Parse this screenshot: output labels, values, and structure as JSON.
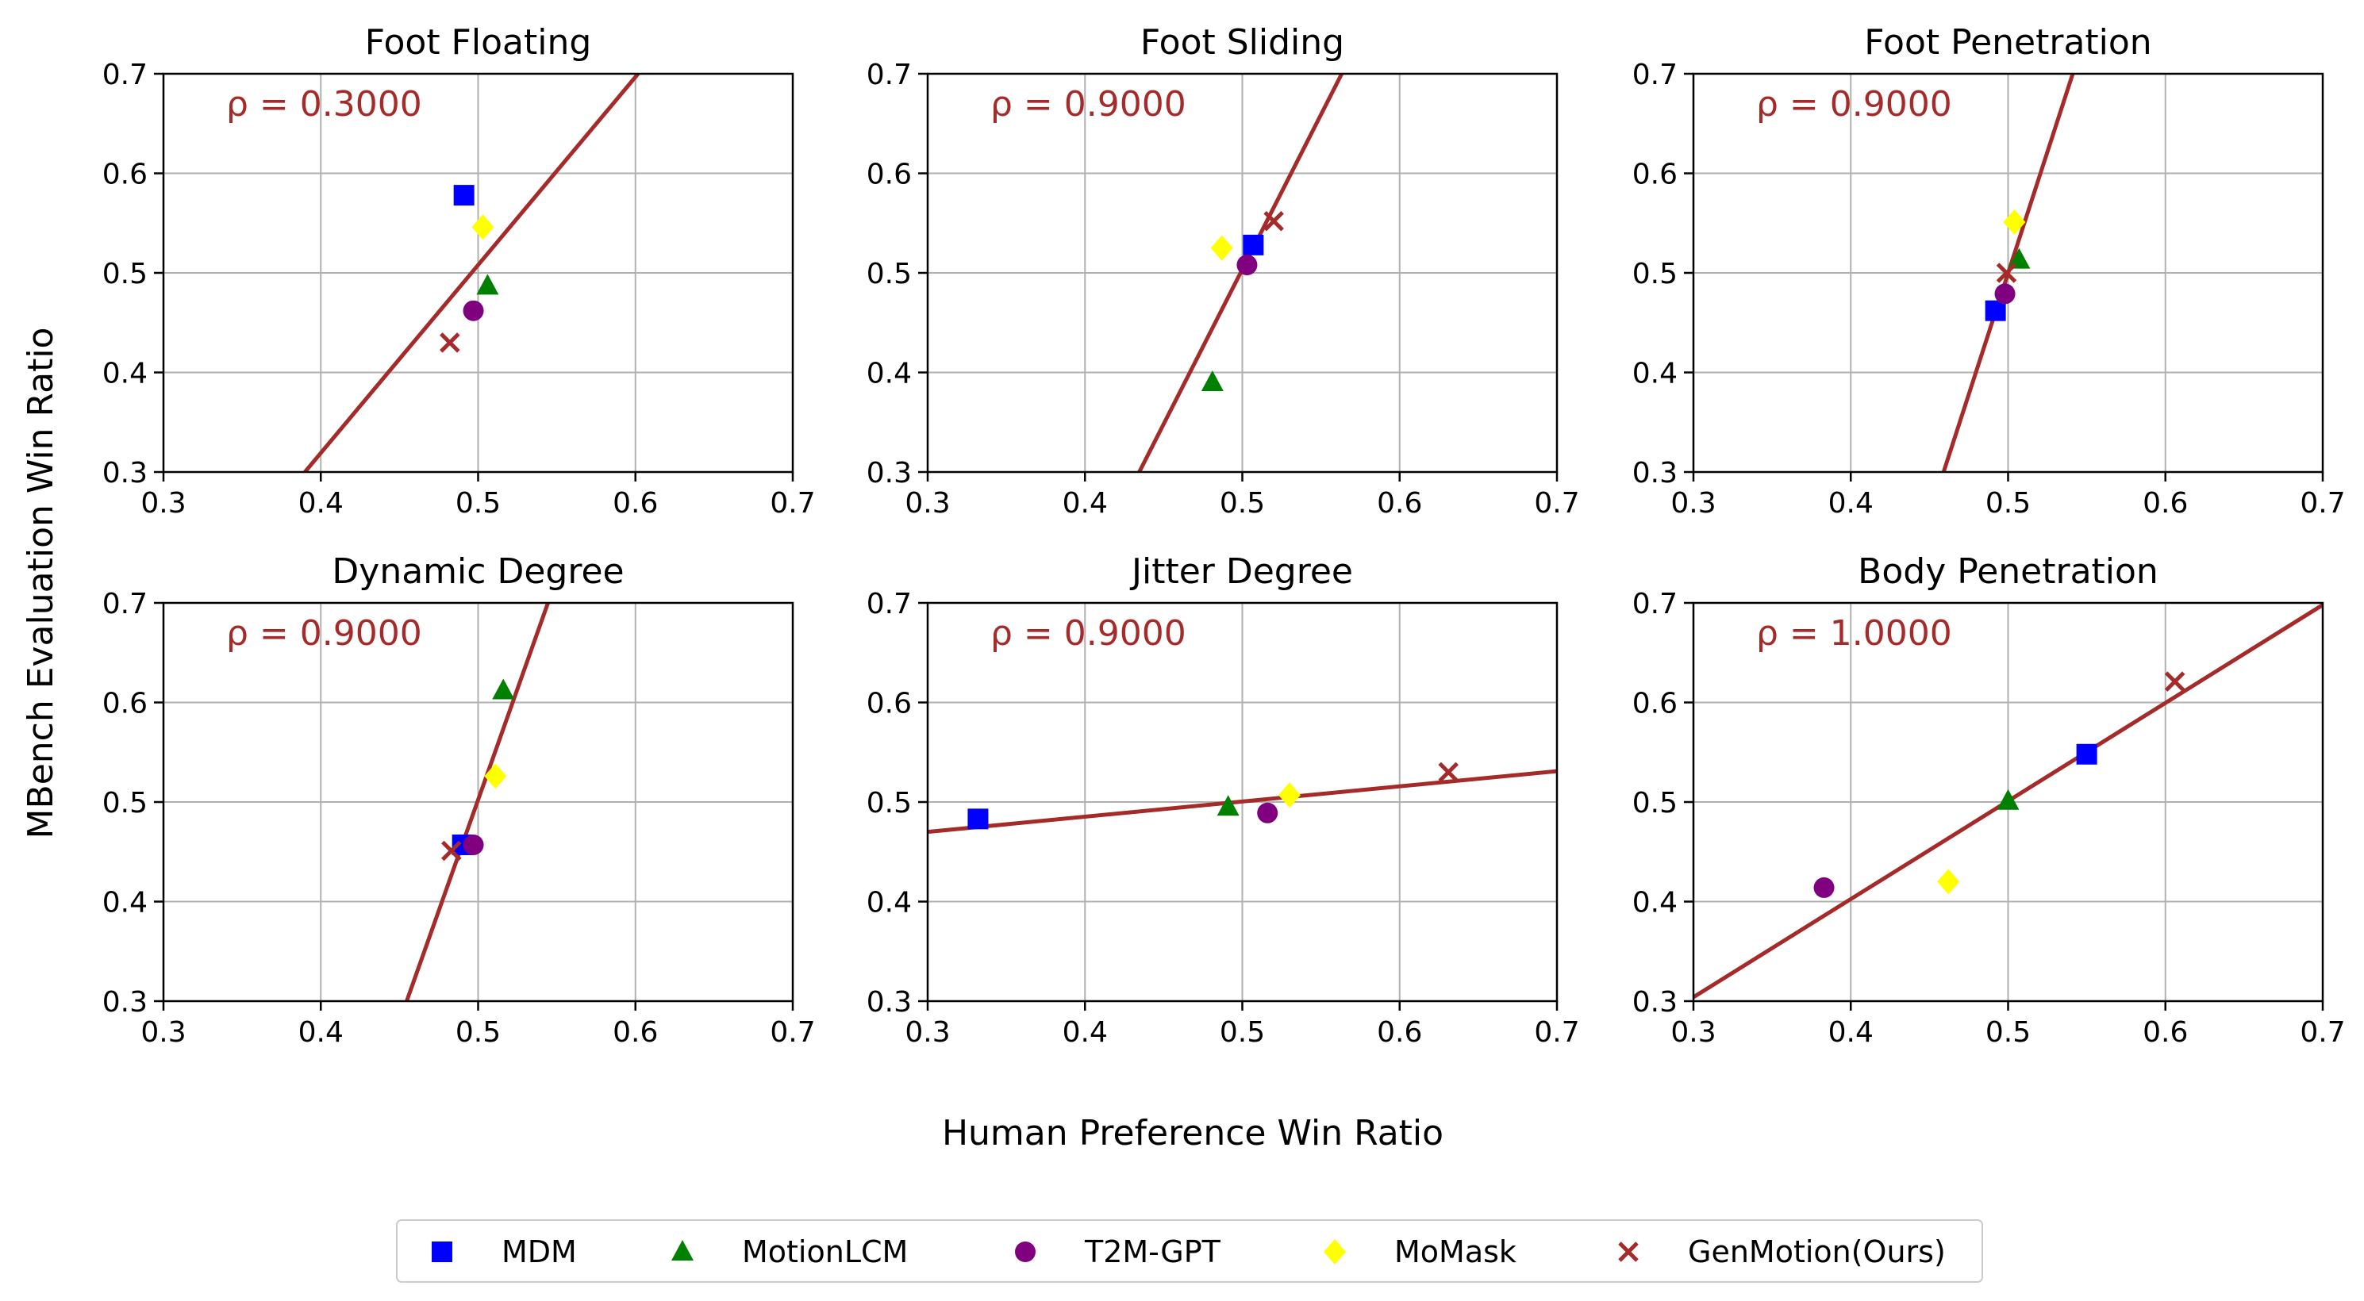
{
  "figure": {
    "ylabel": "MBench Evaluation Win Ratio",
    "xlabel": "Human Preference Win Ratio"
  },
  "colors": {
    "MDM": "#0000ff",
    "MotionLCM": "#008000",
    "T2M-GPT": "#800080",
    "MoMask": "#ffff00",
    "GenMotion(Ours)": "#a52a2a",
    "fit_line": "#a52a2a",
    "rho_text": "#a52a2a",
    "grid": "#b0b0b0"
  },
  "legend": {
    "entries": [
      {
        "label": "MDM",
        "marker": "square"
      },
      {
        "label": "MotionLCM",
        "marker": "triangle"
      },
      {
        "label": "T2M-GPT",
        "marker": "circle"
      },
      {
        "label": "MoMask",
        "marker": "diamond"
      },
      {
        "label": "GenMotion(Ours)",
        "marker": "x"
      }
    ]
  },
  "chart_data": [
    {
      "type": "scatter",
      "title": "Foot Floating",
      "rho": "ρ = 0.3000",
      "xlim": [
        0.3,
        0.7
      ],
      "ylim": [
        0.3,
        0.7
      ],
      "xticks": [
        "0.3",
        "0.4",
        "0.5",
        "0.6",
        "0.7"
      ],
      "yticks": [
        "0.3",
        "0.4",
        "0.5",
        "0.6",
        "0.7"
      ],
      "points": [
        {
          "model": "MDM",
          "x": 0.491,
          "y": 0.578
        },
        {
          "model": "MotionLCM",
          "x": 0.506,
          "y": 0.487
        },
        {
          "model": "T2M-GPT",
          "x": 0.497,
          "y": 0.462
        },
        {
          "model": "MoMask",
          "x": 0.503,
          "y": 0.546
        },
        {
          "model": "GenMotion(Ours)",
          "x": 0.482,
          "y": 0.43
        }
      ],
      "fit": {
        "x1": 0.3899,
        "y1": 0.3,
        "x2": 0.6017,
        "y2": 0.7
      }
    },
    {
      "type": "scatter",
      "title": "Foot Sliding",
      "rho": "ρ = 0.9000",
      "xlim": [
        0.3,
        0.7
      ],
      "ylim": [
        0.3,
        0.7
      ],
      "xticks": [
        "0.3",
        "0.4",
        "0.5",
        "0.6",
        "0.7"
      ],
      "yticks": [
        "0.3",
        "0.4",
        "0.5",
        "0.6",
        "0.7"
      ],
      "points": [
        {
          "model": "MDM",
          "x": 0.507,
          "y": 0.528
        },
        {
          "model": "MotionLCM",
          "x": 0.481,
          "y": 0.39
        },
        {
          "model": "T2M-GPT",
          "x": 0.503,
          "y": 0.508
        },
        {
          "model": "MoMask",
          "x": 0.487,
          "y": 0.525
        },
        {
          "model": "GenMotion(Ours)",
          "x": 0.52,
          "y": 0.552
        }
      ],
      "fit": {
        "x1": 0.4345,
        "y1": 0.3,
        "x2": 0.5632,
        "y2": 0.7
      }
    },
    {
      "type": "scatter",
      "title": "Foot Penetration",
      "rho": "ρ = 0.9000",
      "xlim": [
        0.3,
        0.7
      ],
      "ylim": [
        0.3,
        0.7
      ],
      "xticks": [
        "0.3",
        "0.4",
        "0.5",
        "0.6",
        "0.7"
      ],
      "yticks": [
        "0.3",
        "0.4",
        "0.5",
        "0.6",
        "0.7"
      ],
      "points": [
        {
          "model": "MDM",
          "x": 0.492,
          "y": 0.462
        },
        {
          "model": "MotionLCM",
          "x": 0.507,
          "y": 0.513
        },
        {
          "model": "T2M-GPT",
          "x": 0.498,
          "y": 0.479
        },
        {
          "model": "MoMask",
          "x": 0.504,
          "y": 0.551
        },
        {
          "model": "GenMotion(Ours)",
          "x": 0.499,
          "y": 0.5
        }
      ],
      "fit": {
        "x1": 0.459,
        "y1": 0.3,
        "x2": 0.5411,
        "y2": 0.7
      }
    },
    {
      "type": "scatter",
      "title": "Dynamic Degree",
      "rho": "ρ = 0.9000",
      "xlim": [
        0.3,
        0.7
      ],
      "ylim": [
        0.3,
        0.7
      ],
      "xticks": [
        "0.3",
        "0.4",
        "0.5",
        "0.6",
        "0.7"
      ],
      "yticks": [
        "0.3",
        "0.4",
        "0.5",
        "0.6",
        "0.7"
      ],
      "points": [
        {
          "model": "MDM",
          "x": 0.49,
          "y": 0.457
        },
        {
          "model": "MotionLCM",
          "x": 0.516,
          "y": 0.612
        },
        {
          "model": "T2M-GPT",
          "x": 0.497,
          "y": 0.457
        },
        {
          "model": "MoMask",
          "x": 0.511,
          "y": 0.526
        },
        {
          "model": "GenMotion(Ours)",
          "x": 0.483,
          "y": 0.451
        }
      ],
      "fit": {
        "x1": 0.4546,
        "y1": 0.3,
        "x2": 0.5444,
        "y2": 0.7
      }
    },
    {
      "type": "scatter",
      "title": "Jitter Degree",
      "rho": "ρ = 0.9000",
      "xlim": [
        0.3,
        0.7
      ],
      "ylim": [
        0.3,
        0.7
      ],
      "xticks": [
        "0.3",
        "0.4",
        "0.5",
        "0.6",
        "0.7"
      ],
      "yticks": [
        "0.3",
        "0.4",
        "0.5",
        "0.6",
        "0.7"
      ],
      "points": [
        {
          "model": "MDM",
          "x": 0.332,
          "y": 0.483
        },
        {
          "model": "MotionLCM",
          "x": 0.491,
          "y": 0.495
        },
        {
          "model": "T2M-GPT",
          "x": 0.516,
          "y": 0.489
        },
        {
          "model": "MoMask",
          "x": 0.53,
          "y": 0.507
        },
        {
          "model": "GenMotion(Ours)",
          "x": 0.631,
          "y": 0.53
        }
      ],
      "fit": {
        "x1": 0.3,
        "y1": 0.47,
        "x2": 0.7,
        "y2": 0.531
      }
    },
    {
      "type": "scatter",
      "title": "Body Penetration",
      "rho": "ρ = 1.0000",
      "xlim": [
        0.3,
        0.7
      ],
      "ylim": [
        0.3,
        0.7
      ],
      "xticks": [
        "0.3",
        "0.4",
        "0.5",
        "0.6",
        "0.7"
      ],
      "yticks": [
        "0.3",
        "0.4",
        "0.5",
        "0.6",
        "0.7"
      ],
      "points": [
        {
          "model": "MDM",
          "x": 0.55,
          "y": 0.548
        },
        {
          "model": "MotionLCM",
          "x": 0.5,
          "y": 0.501
        },
        {
          "model": "T2M-GPT",
          "x": 0.383,
          "y": 0.414
        },
        {
          "model": "MoMask",
          "x": 0.462,
          "y": 0.42
        },
        {
          "model": "GenMotion(Ours)",
          "x": 0.606,
          "y": 0.621
        }
      ],
      "fit": {
        "x1": 0.3,
        "y1": 0.304,
        "x2": 0.7,
        "y2": 0.698
      }
    }
  ]
}
